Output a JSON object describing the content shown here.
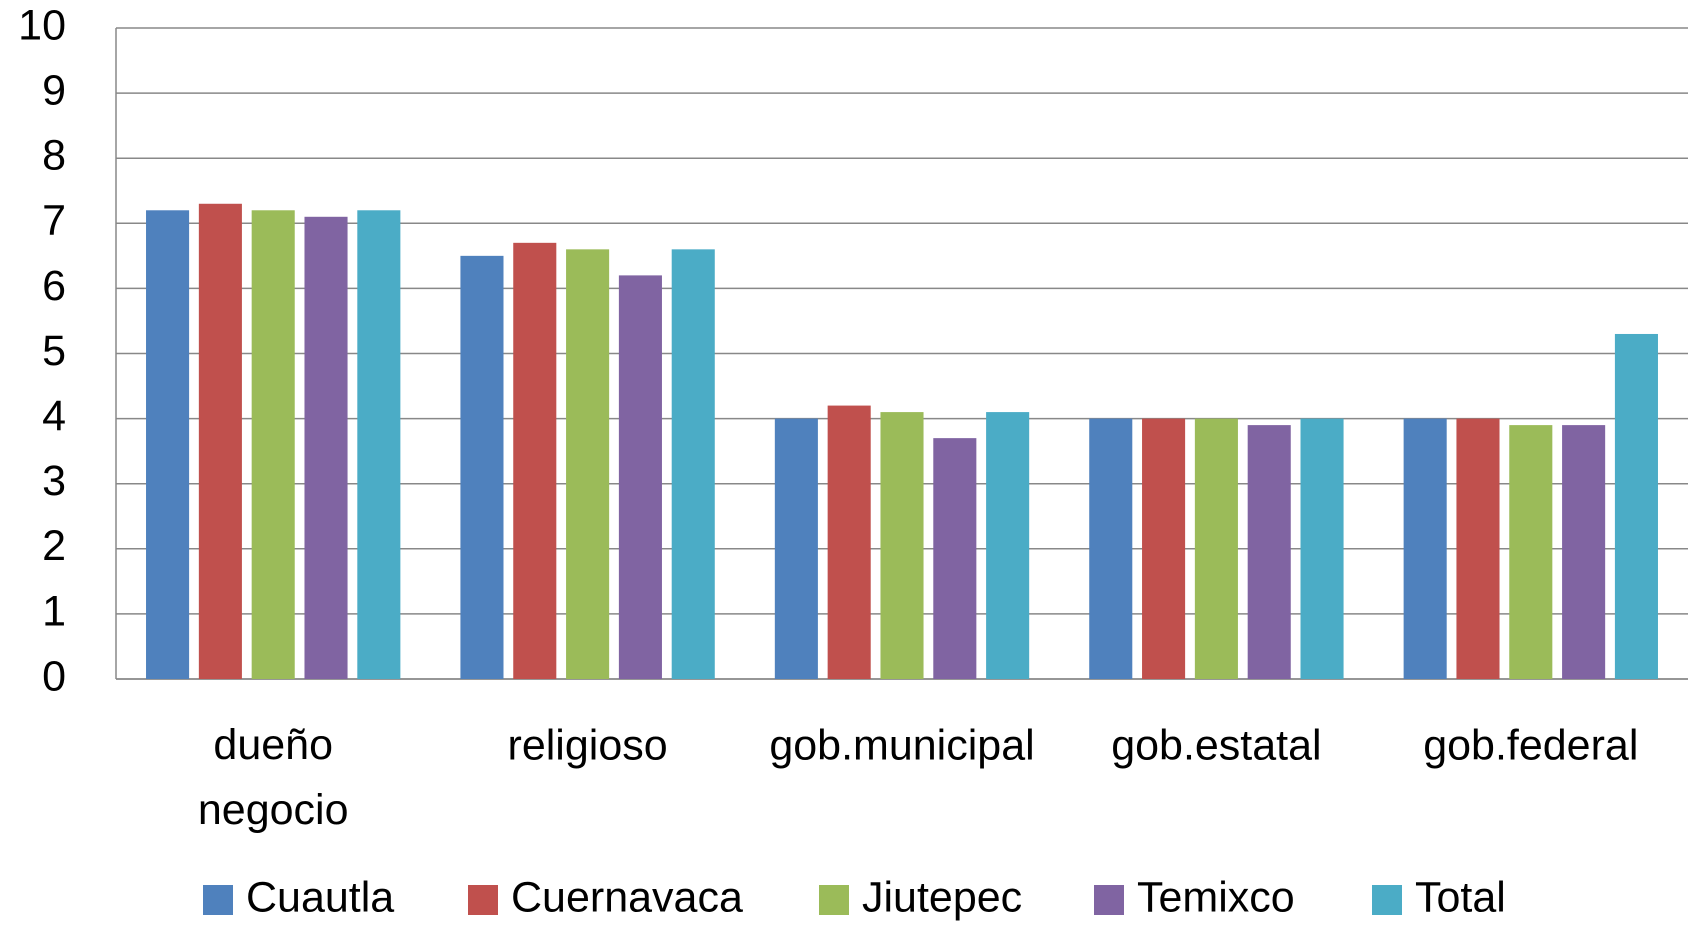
{
  "chart_data": {
    "type": "bar",
    "categories": [
      "dueño negocio",
      "religioso",
      "gob.municipal",
      "gob.estatal",
      "gob.federal"
    ],
    "series": [
      {
        "name": "Cuautla",
        "color": "#4f81bd",
        "values": [
          7.2,
          6.5,
          4.0,
          4.0,
          4.0
        ]
      },
      {
        "name": "Cuernavaca",
        "color": "#c0504d",
        "values": [
          7.3,
          6.7,
          4.2,
          4.0,
          4.0
        ]
      },
      {
        "name": "Jiutepec",
        "color": "#9bbb59",
        "values": [
          7.2,
          6.6,
          4.1,
          4.0,
          3.9
        ]
      },
      {
        "name": "Temixco",
        "color": "#8064a2",
        "values": [
          7.1,
          6.2,
          3.7,
          3.9,
          3.9
        ]
      },
      {
        "name": "Total",
        "color": "#4bacc6",
        "values": [
          7.2,
          6.6,
          4.1,
          4.0,
          5.3
        ]
      }
    ],
    "ylim": [
      0,
      10
    ],
    "yticks": [
      0,
      1,
      2,
      3,
      4,
      5,
      6,
      7,
      8,
      9,
      10
    ],
    "grid": true,
    "legend": "bottom"
  }
}
